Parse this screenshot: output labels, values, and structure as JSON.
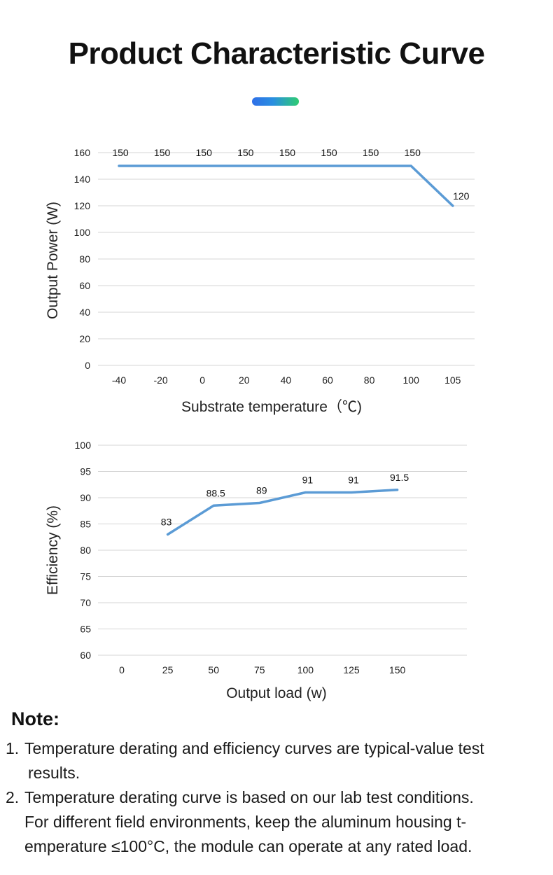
{
  "title": "Product Characteristic Curve",
  "accent_colors": [
    "#2f6fe8",
    "#2ecc71"
  ],
  "chart_data": [
    {
      "type": "line",
      "title": "",
      "xlabel": "Substrate temperature（℃)",
      "ylabel": "Output Power (W)",
      "categories": [
        "-40",
        "-20",
        "0",
        "20",
        "40",
        "60",
        "80",
        "100",
        "105"
      ],
      "values": [
        150,
        150,
        150,
        150,
        150,
        150,
        150,
        150,
        120
      ],
      "data_labels": [
        "150",
        "150",
        "150",
        "150",
        "150",
        "150",
        "150",
        "150",
        "120"
      ],
      "yticks": [
        "0",
        "20",
        "40",
        "60",
        "80",
        "100",
        "120",
        "140",
        "160"
      ],
      "ylim": [
        0,
        160
      ],
      "grid": true,
      "line_color": "#5b9bd5"
    },
    {
      "type": "line",
      "title": "",
      "xlabel": "Output load (w)",
      "ylabel": "Efficiency (%)",
      "categories": [
        "0",
        "25",
        "50",
        "75",
        "100",
        "125",
        "150"
      ],
      "x": [
        25,
        50,
        75,
        100,
        125,
        150
      ],
      "values": [
        83,
        88.5,
        89,
        91,
        91,
        91.5
      ],
      "data_labels": [
        "83",
        "88.5",
        "89",
        "91",
        "91",
        "91.5"
      ],
      "yticks": [
        "60",
        "65",
        "70",
        "75",
        "80",
        "85",
        "90",
        "95",
        "100"
      ],
      "ylim": [
        60,
        100
      ],
      "grid": true,
      "line_color": "#5b9bd5"
    }
  ],
  "notes": {
    "title": "Note:",
    "items": [
      {
        "number": "1.",
        "lines": [
          "Temperature derating and efficiency curves are typical-value test",
          "results."
        ]
      },
      {
        "number": "2.",
        "lines": [
          "Temperature derating curve is based on our lab test conditions.",
          "For different field environments, keep the aluminum housing t-",
          "emperature ≤100°C, the module can operate at any rated load."
        ]
      }
    ]
  }
}
